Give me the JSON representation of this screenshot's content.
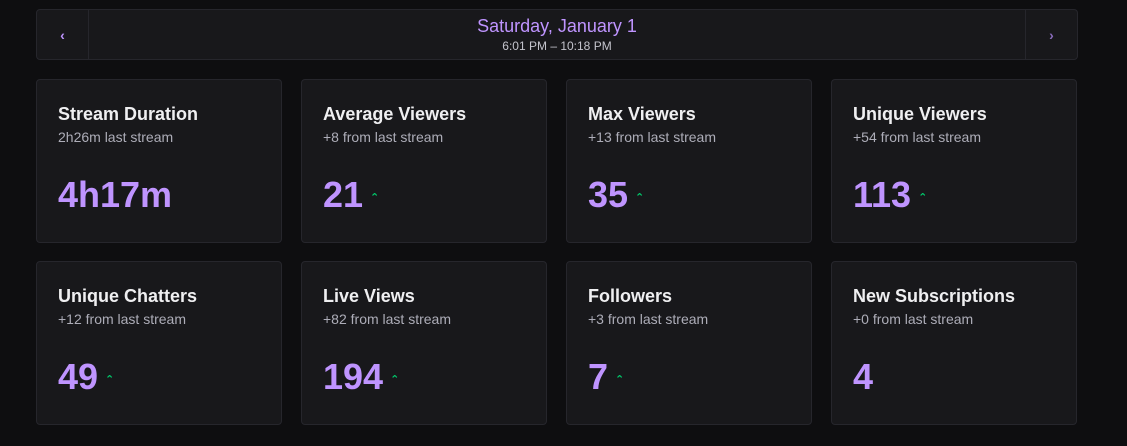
{
  "date_nav": {
    "prev_glyph": "‹",
    "next_glyph": "›",
    "date": "Saturday, January 1",
    "time_range": "6:01 PM – 10:18 PM"
  },
  "colors": {
    "accent": "#bf94ff",
    "trend_up": "#00c96b",
    "card_bg": "#18181b",
    "page_bg": "#0e0e10"
  },
  "stats": [
    {
      "title": "Stream Duration",
      "subtitle": "2h26m last stream",
      "value": "4h17m",
      "trend": ""
    },
    {
      "title": "Average Viewers",
      "subtitle": "+8 from last stream",
      "value": "21",
      "trend": "⌃"
    },
    {
      "title": "Max Viewers",
      "subtitle": "+13 from last stream",
      "value": "35",
      "trend": "⌃"
    },
    {
      "title": "Unique Viewers",
      "subtitle": "+54 from last stream",
      "value": "113",
      "trend": "⌃"
    },
    {
      "title": "Unique Chatters",
      "subtitle": "+12 from last stream",
      "value": "49",
      "trend": "⌃"
    },
    {
      "title": "Live Views",
      "subtitle": "+82 from last stream",
      "value": "194",
      "trend": "⌃"
    },
    {
      "title": "Followers",
      "subtitle": "+3 from last stream",
      "value": "7",
      "trend": "⌃"
    },
    {
      "title": "New Subscriptions",
      "subtitle": "+0 from last stream",
      "value": "4",
      "trend": ""
    }
  ]
}
